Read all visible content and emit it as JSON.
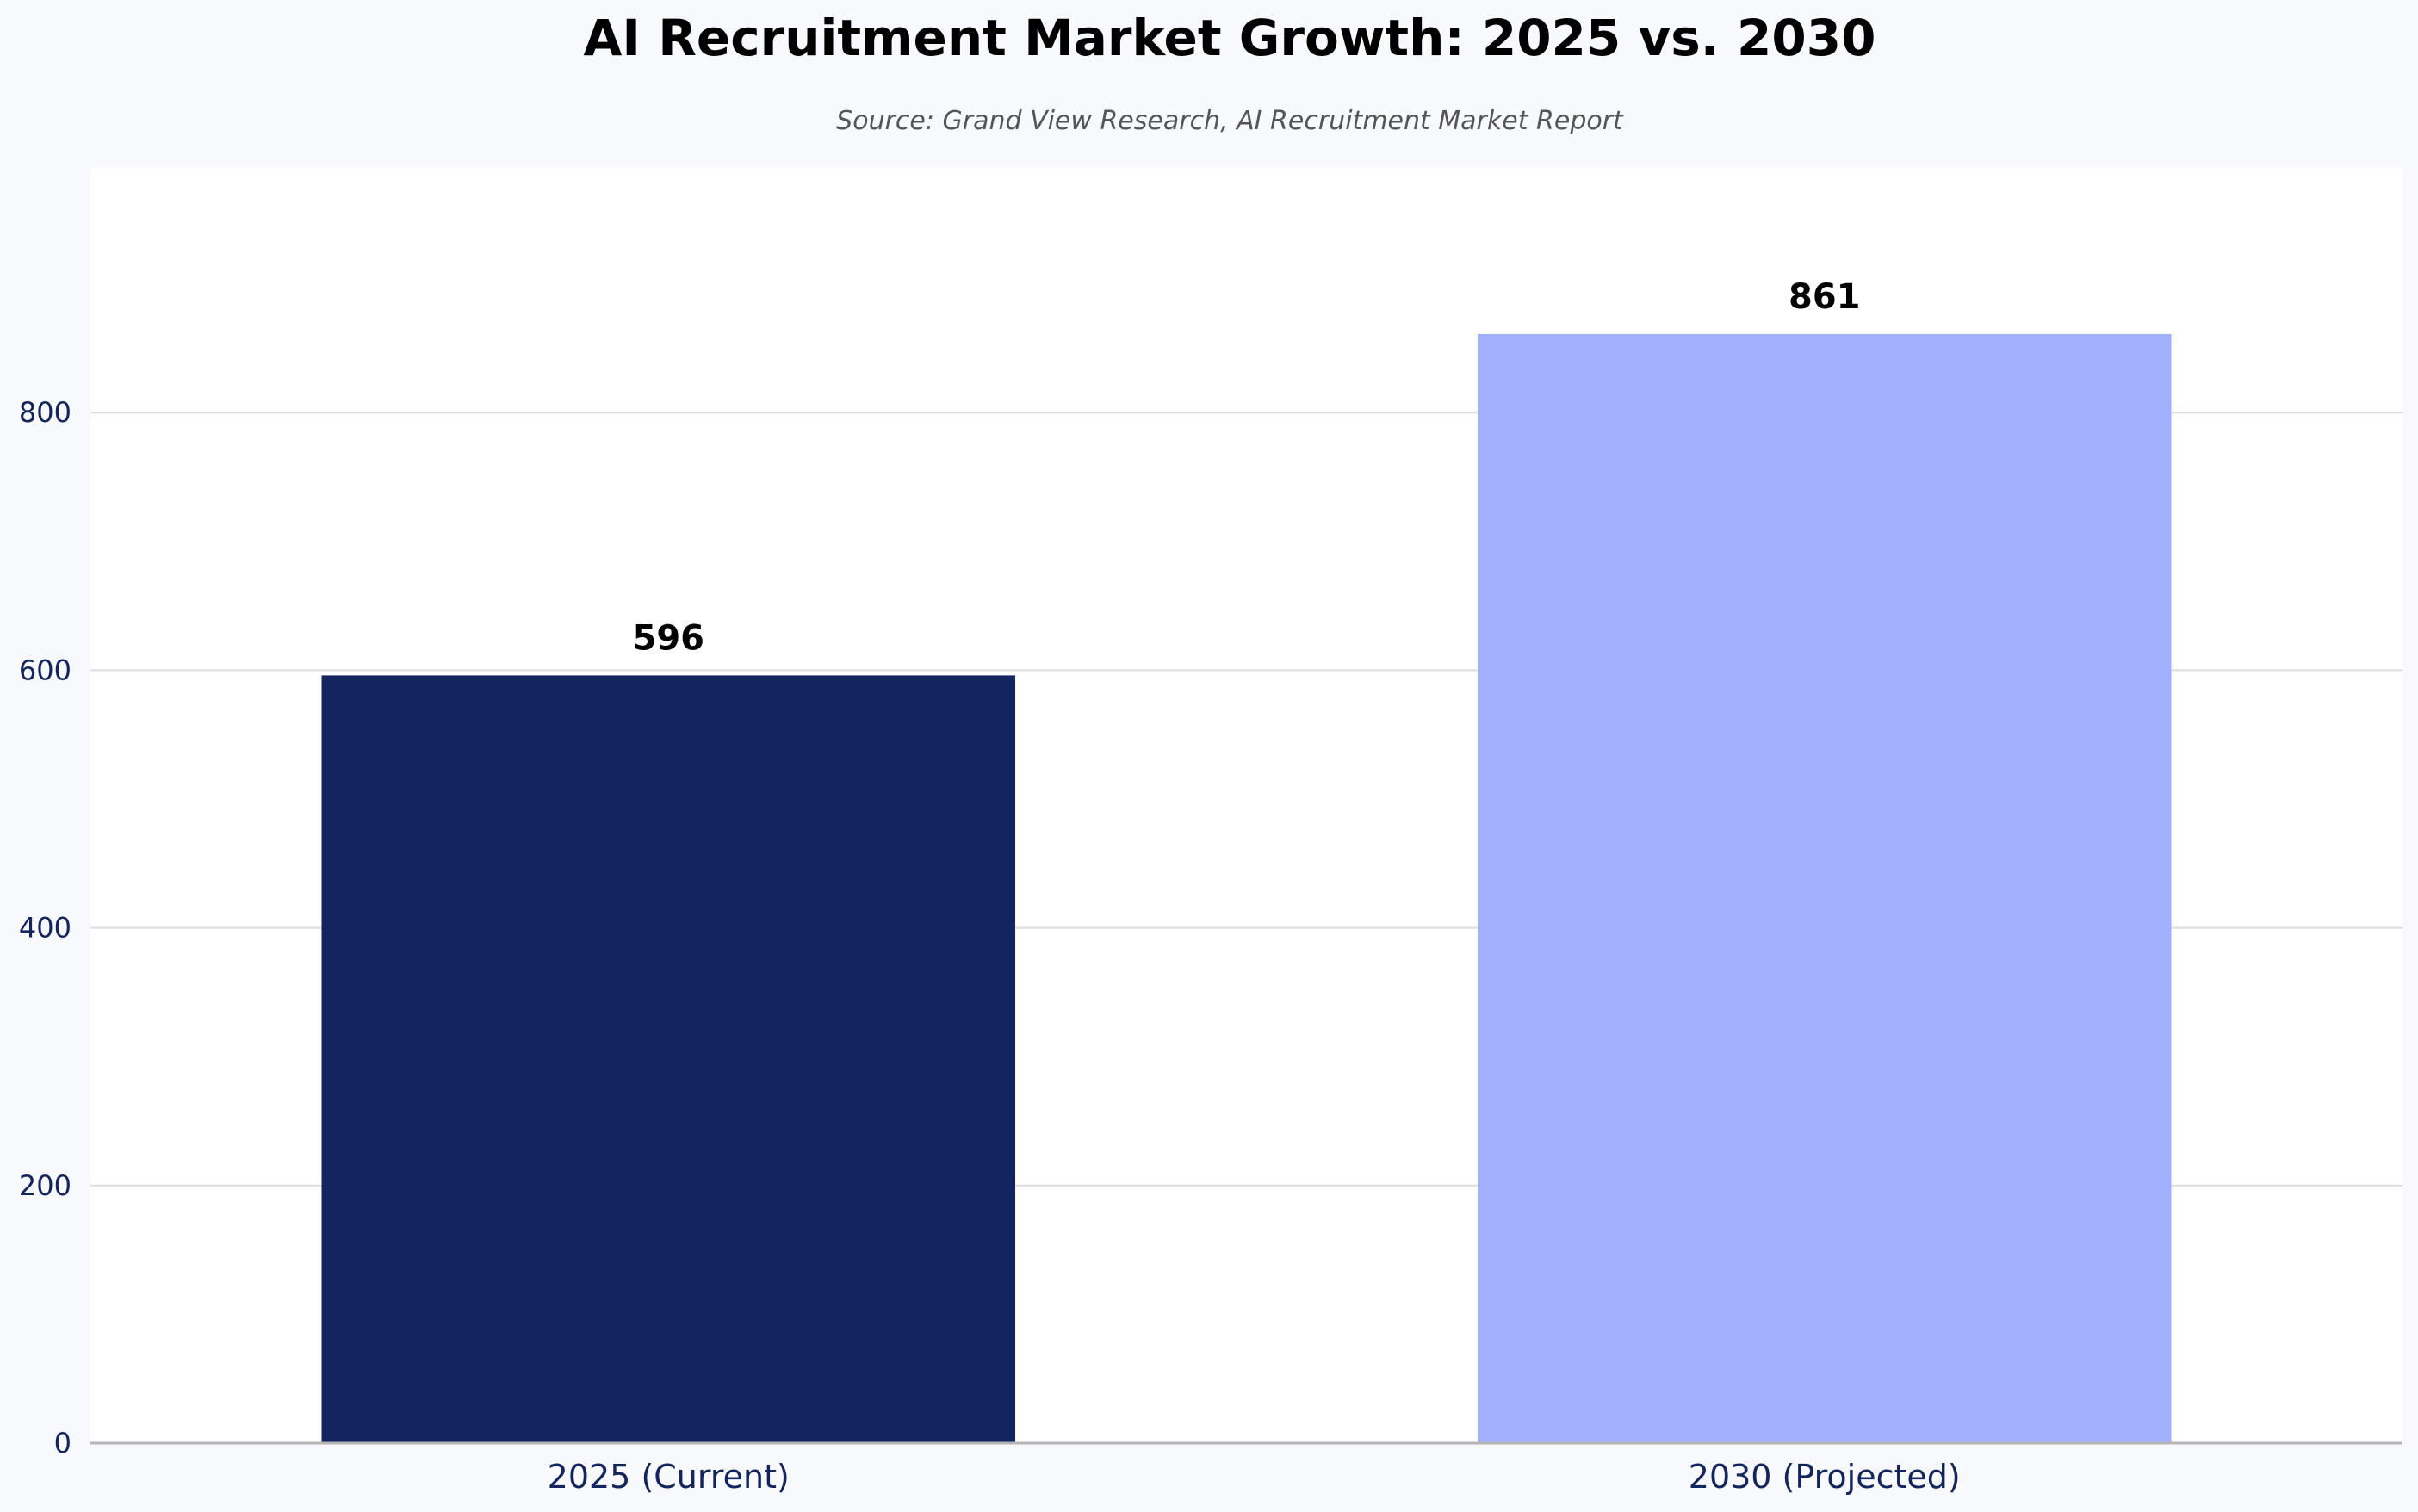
{
  "chart_data": {
    "type": "bar",
    "title": "AI Recruitment Market Growth: 2025 vs. 2030",
    "subtitle": "Source: Grand View Research, AI Recruitment Market Report",
    "xlabel": "",
    "ylabel": "",
    "categories": [
      "2025 (Current)",
      "2030 (Projected)"
    ],
    "values": [
      596,
      861
    ],
    "value_labels": [
      "596",
      "861"
    ],
    "bar_colors": [
      "#14245c",
      "#a0b0fc"
    ],
    "ylim": [
      0,
      990
    ],
    "yticks": [
      0,
      200,
      400,
      600,
      800
    ],
    "ytick_labels": [
      "0",
      "200",
      "400",
      "600",
      "800"
    ],
    "grid": true,
    "legend": "none"
  },
  "colors": {
    "page_background": "#f7f9fc",
    "plot_background": "#ffffff",
    "grid": "#dcdcdc",
    "axis": "#b4b4b4",
    "tick_text": "#14245c"
  }
}
